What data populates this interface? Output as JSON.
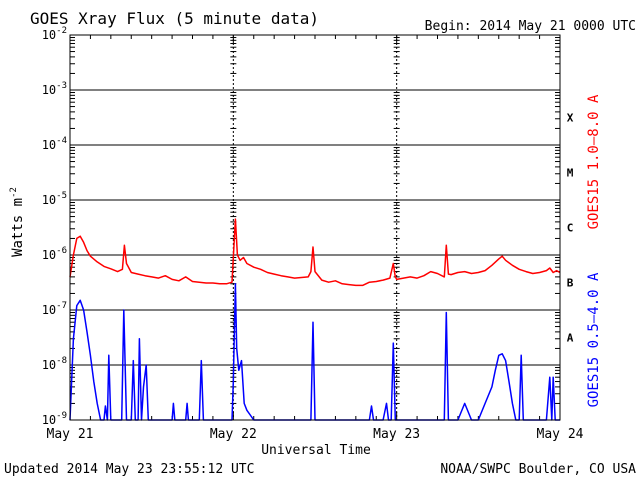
{
  "chart_data": {
    "type": "line",
    "title": "GOES Xray Flux (5 minute data)",
    "begin_label": "Begin:  2014 May 21 0000 UTC",
    "ylabel": "Watts m",
    "ylabel_sup": "-2",
    "xlabel": "Universal Time",
    "updated": "Updated 2014 May 23 23:55:12 UTC",
    "credit": "NOAA/SWPC Boulder, CO USA",
    "x_ticks": [
      "May 21",
      "May 22",
      "May 23",
      "May 24"
    ],
    "xlim_hours": [
      0,
      72
    ],
    "y_scale": "log",
    "ylim": [
      1e-09,
      0.01
    ],
    "y_ticks": [
      {
        "base": "10",
        "exp": "-2",
        "value": 0.01
      },
      {
        "base": "10",
        "exp": "-3",
        "value": 0.001
      },
      {
        "base": "10",
        "exp": "-4",
        "value": 0.0001
      },
      {
        "base": "10",
        "exp": "-5",
        "value": 1e-05
      },
      {
        "base": "10",
        "exp": "-6",
        "value": 1e-06
      },
      {
        "base": "10",
        "exp": "-7",
        "value": 1e-07
      },
      {
        "base": "10",
        "exp": "-8",
        "value": 1e-08
      },
      {
        "base": "10",
        "exp": "-9",
        "value": 1e-09
      }
    ],
    "flare_classes": [
      {
        "label": "X",
        "value": 0.000316
      },
      {
        "label": "M",
        "value": 3.16e-05
      },
      {
        "label": "C",
        "value": 3.16e-06
      },
      {
        "label": "B",
        "value": 3.16e-07
      },
      {
        "label": "A",
        "value": 3.16e-08
      }
    ],
    "series": [
      {
        "name": "GOES15 1.0–8.0 A",
        "color": "#ff0000",
        "points": [
          [
            0,
            4e-07
          ],
          [
            0.5,
            1e-06
          ],
          [
            1,
            2e-06
          ],
          [
            1.5,
            2.2e-06
          ],
          [
            2,
            1.7e-06
          ],
          [
            2.5,
            1.2e-06
          ],
          [
            3,
            9.5e-07
          ],
          [
            4,
            7.5e-07
          ],
          [
            5,
            6.2e-07
          ],
          [
            6,
            5.6e-07
          ],
          [
            7,
            5e-07
          ],
          [
            7.7,
            5.5e-07
          ],
          [
            8,
            1.5e-06
          ],
          [
            8.3,
            7e-07
          ],
          [
            9,
            4.8e-07
          ],
          [
            10,
            4.5e-07
          ],
          [
            11,
            4.2e-07
          ],
          [
            12,
            4e-07
          ],
          [
            13,
            3.8e-07
          ],
          [
            14,
            4.2e-07
          ],
          [
            15,
            3.6e-07
          ],
          [
            16,
            3.4e-07
          ],
          [
            17,
            4e-07
          ],
          [
            18,
            3.3e-07
          ],
          [
            19,
            3.2e-07
          ],
          [
            20,
            3.1e-07
          ],
          [
            21,
            3.1e-07
          ],
          [
            22,
            3e-07
          ],
          [
            23,
            3e-07
          ],
          [
            23.8,
            3.2e-07
          ],
          [
            24.3,
            4.5e-06
          ],
          [
            24.6,
            1e-06
          ],
          [
            25,
            8e-07
          ],
          [
            25.5,
            9e-07
          ],
          [
            26,
            7e-07
          ],
          [
            27,
            6e-07
          ],
          [
            28,
            5.5e-07
          ],
          [
            29,
            4.8e-07
          ],
          [
            30,
            4.5e-07
          ],
          [
            31,
            4.2e-07
          ],
          [
            32,
            4e-07
          ],
          [
            33,
            3.8e-07
          ],
          [
            34,
            3.9e-07
          ],
          [
            35,
            4e-07
          ],
          [
            35.4,
            5e-07
          ],
          [
            35.7,
            1.4e-06
          ],
          [
            36,
            5e-07
          ],
          [
            37,
            3.5e-07
          ],
          [
            38,
            3.2e-07
          ],
          [
            39,
            3.4e-07
          ],
          [
            40,
            3e-07
          ],
          [
            41,
            2.9e-07
          ],
          [
            42,
            2.8e-07
          ],
          [
            43,
            2.8e-07
          ],
          [
            44,
            3.2e-07
          ],
          [
            45,
            3.3e-07
          ],
          [
            46,
            3.5e-07
          ],
          [
            47,
            3.8e-07
          ],
          [
            47.5,
            7e-07
          ],
          [
            47.8,
            4e-07
          ],
          [
            48,
            3.6e-07
          ],
          [
            49,
            3.8e-07
          ],
          [
            50,
            4e-07
          ],
          [
            51,
            3.8e-07
          ],
          [
            52,
            4.2e-07
          ],
          [
            53,
            5e-07
          ],
          [
            54,
            4.6e-07
          ],
          [
            55,
            4e-07
          ],
          [
            55.3,
            1.5e-06
          ],
          [
            55.6,
            4.5e-07
          ],
          [
            56,
            4.4e-07
          ],
          [
            57,
            4.8e-07
          ],
          [
            58,
            5e-07
          ],
          [
            59,
            4.6e-07
          ],
          [
            60,
            4.8e-07
          ],
          [
            61,
            5.2e-07
          ],
          [
            62,
            6.5e-07
          ],
          [
            63,
            8.5e-07
          ],
          [
            63.5,
            9.5e-07
          ],
          [
            64,
            8e-07
          ],
          [
            65,
            6.5e-07
          ],
          [
            66,
            5.5e-07
          ],
          [
            67,
            5e-07
          ],
          [
            68,
            4.6e-07
          ],
          [
            69,
            4.8e-07
          ],
          [
            70,
            5.2e-07
          ],
          [
            70.5,
            5.8e-07
          ],
          [
            71,
            4.8e-07
          ],
          [
            71.5,
            5.2e-07
          ],
          [
            72,
            4.8e-07
          ]
        ]
      },
      {
        "name": "GOES15 0.5–4.0 A",
        "color": "#0000ff",
        "points": [
          [
            0,
            1e-09
          ],
          [
            0.5,
            3e-08
          ],
          [
            1,
            1.2e-07
          ],
          [
            1.5,
            1.5e-07
          ],
          [
            2,
            1e-07
          ],
          [
            2.5,
            4e-08
          ],
          [
            3,
            1.5e-08
          ],
          [
            3.5,
            5e-09
          ],
          [
            4,
            2e-09
          ],
          [
            4.5,
            1e-09
          ],
          [
            5,
            1e-09
          ],
          [
            5.2,
            1.8e-09
          ],
          [
            5.5,
            1e-09
          ],
          [
            5.7,
            1.5e-08
          ],
          [
            6,
            1e-09
          ],
          [
            7,
            1e-09
          ],
          [
            7.6,
            1e-09
          ],
          [
            7.9,
            1e-07
          ],
          [
            8.3,
            1e-09
          ],
          [
            9,
            1e-09
          ],
          [
            9.3,
            1.2e-08
          ],
          [
            9.6,
            1e-09
          ],
          [
            10,
            1e-09
          ],
          [
            10.2,
            3e-08
          ],
          [
            10.5,
            1e-09
          ],
          [
            10.8,
            4e-09
          ],
          [
            11.2,
            1e-08
          ],
          [
            11.5,
            1e-09
          ],
          [
            12,
            1e-09
          ],
          [
            13,
            1e-09
          ],
          [
            15,
            1e-09
          ],
          [
            15.2,
            2e-09
          ],
          [
            15.4,
            1e-09
          ],
          [
            17,
            1e-09
          ],
          [
            17.2,
            2e-09
          ],
          [
            17.4,
            1e-09
          ],
          [
            19,
            1e-09
          ],
          [
            19.3,
            1.2e-08
          ],
          [
            19.6,
            1e-09
          ],
          [
            21,
            1e-09
          ],
          [
            23.8,
            1e-09
          ],
          [
            24,
            5e-09
          ],
          [
            24.3,
            3e-07
          ],
          [
            24.5,
            2e-08
          ],
          [
            24.8,
            8e-09
          ],
          [
            25.2,
            1.2e-08
          ],
          [
            25.6,
            2e-09
          ],
          [
            26,
            1.5e-09
          ],
          [
            27,
            1e-09
          ],
          [
            29,
            1e-09
          ],
          [
            31,
            1e-09
          ],
          [
            33,
            1e-09
          ],
          [
            34,
            1e-09
          ],
          [
            35.4,
            1e-09
          ],
          [
            35.7,
            6e-08
          ],
          [
            36,
            1e-09
          ],
          [
            38,
            1e-09
          ],
          [
            40,
            1e-09
          ],
          [
            42,
            1e-09
          ],
          [
            44,
            1e-09
          ],
          [
            44.3,
            1.8e-09
          ],
          [
            44.6,
            1e-09
          ],
          [
            46,
            1e-09
          ],
          [
            46.5,
            2e-09
          ],
          [
            46.8,
            1e-09
          ],
          [
            47.2,
            1e-09
          ],
          [
            47.5,
            2.5e-08
          ],
          [
            47.8,
            1e-09
          ],
          [
            50,
            1e-09
          ],
          [
            52,
            1e-09
          ],
          [
            54,
            1e-09
          ],
          [
            55,
            1e-09
          ],
          [
            55.3,
            9e-08
          ],
          [
            55.6,
            1e-09
          ],
          [
            57,
            1e-09
          ],
          [
            58,
            2e-09
          ],
          [
            59,
            1e-09
          ],
          [
            60,
            1e-09
          ],
          [
            61,
            2e-09
          ],
          [
            62,
            4e-09
          ],
          [
            62.5,
            8e-09
          ],
          [
            63,
            1.5e-08
          ],
          [
            63.5,
            1.6e-08
          ],
          [
            64,
            1.2e-08
          ],
          [
            64.5,
            5e-09
          ],
          [
            65,
            2e-09
          ],
          [
            65.5,
            1e-09
          ],
          [
            66,
            1e-09
          ],
          [
            66.3,
            1.5e-08
          ],
          [
            66.6,
            1e-09
          ],
          [
            67,
            1e-09
          ],
          [
            68,
            1e-09
          ],
          [
            69,
            1e-09
          ],
          [
            70,
            1e-09
          ],
          [
            70.5,
            6e-09
          ],
          [
            70.8,
            1e-09
          ],
          [
            71,
            6e-09
          ],
          [
            71.3,
            1e-09
          ],
          [
            72,
            1e-09
          ]
        ]
      }
    ],
    "grid": true
  }
}
